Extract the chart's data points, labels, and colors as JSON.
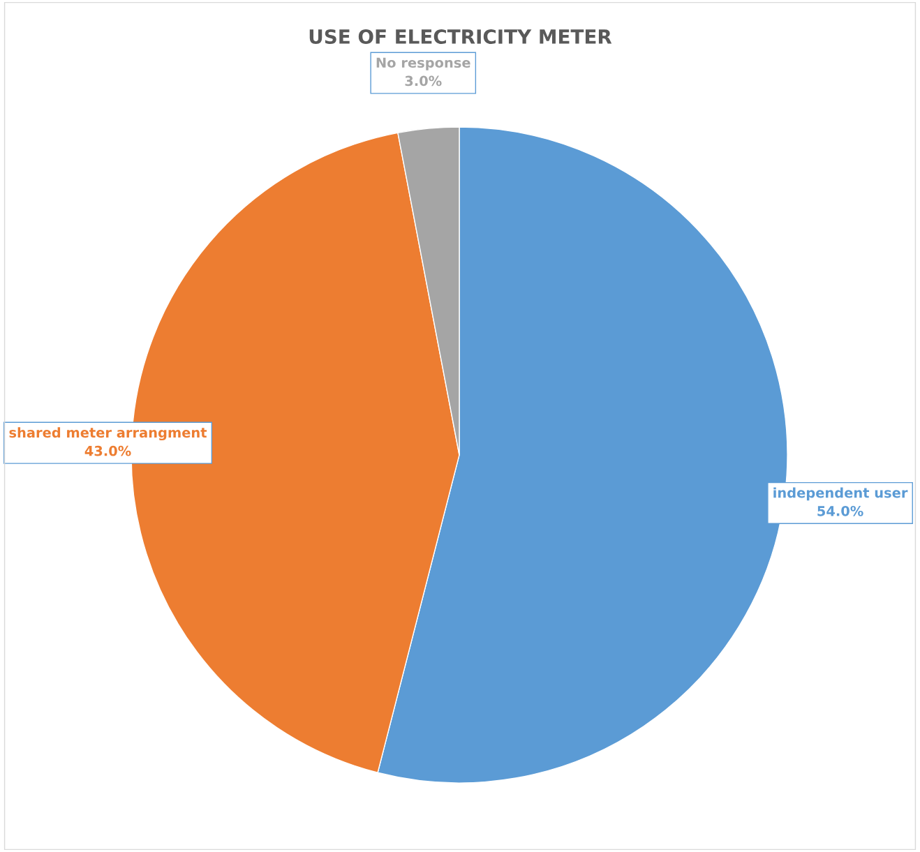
{
  "chart_data": {
    "type": "pie",
    "title": "USE OF ELECTRICITY METER",
    "categories": [
      "independent user",
      "shared meter arrangment",
      "No response"
    ],
    "values": [
      54,
      43,
      3
    ],
    "value_labels": [
      "54.0%",
      "43.0%",
      "3.0%"
    ],
    "colors": [
      "#5b9bd5",
      "#ed7d31",
      "#a5a5a5"
    ],
    "legend": false
  }
}
